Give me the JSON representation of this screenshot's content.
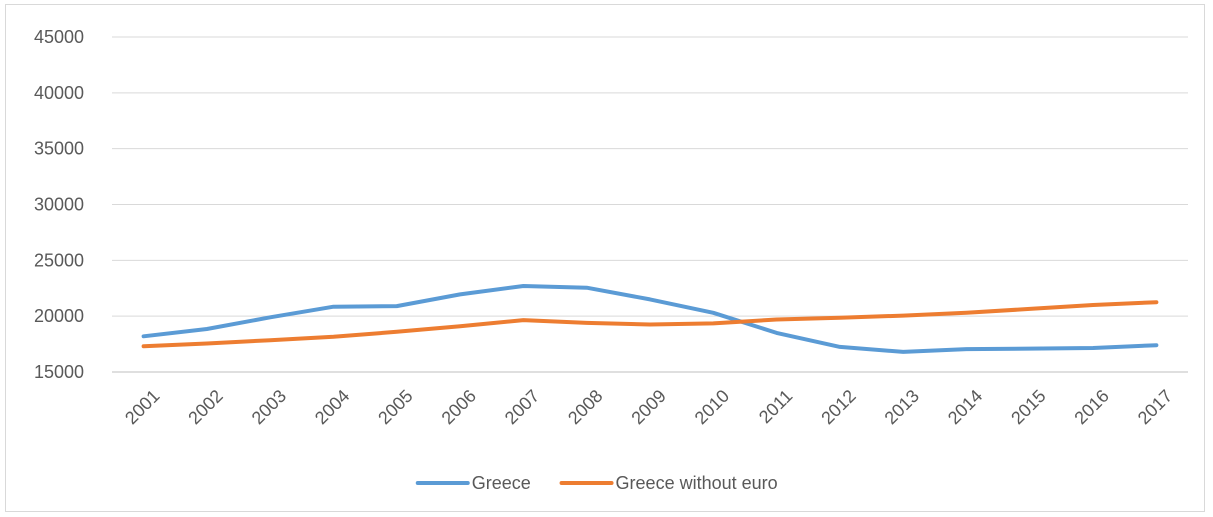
{
  "chart_data": {
    "type": "line",
    "title": "",
    "xlabel": "",
    "ylabel": "",
    "categories": [
      "2001",
      "2002",
      "2003",
      "2004",
      "2005",
      "2006",
      "2007",
      "2008",
      "2009",
      "2010",
      "2011",
      "2012",
      "2013",
      "2014",
      "2015",
      "2016",
      "2017"
    ],
    "ylim": [
      15000,
      45000
    ],
    "yticks": [
      15000,
      20000,
      25000,
      30000,
      35000,
      40000,
      45000
    ],
    "grid": true,
    "legend": "bottom",
    "series": [
      {
        "name": "Greece",
        "color": "#5b9bd5",
        "values": [
          18200,
          18850,
          19900,
          20850,
          20900,
          21950,
          22700,
          22550,
          21500,
          20300,
          18500,
          17250,
          16800,
          17050,
          17100,
          17150,
          17400
        ]
      },
      {
        "name": "Greece without euro",
        "color": "#ed7d31",
        "values": [
          17300,
          17550,
          17850,
          18150,
          18600,
          19100,
          19650,
          19400,
          19250,
          19350,
          19700,
          19850,
          20050,
          20300,
          20650,
          21000,
          21250
        ]
      }
    ]
  }
}
